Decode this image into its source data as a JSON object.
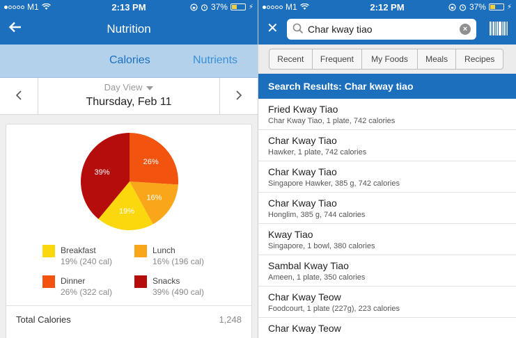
{
  "left_panel": {
    "status": {
      "carrier": "M1",
      "time": "2:13 PM",
      "battery": "37%",
      "battery_fill": 0.37
    },
    "nav": {
      "title": "Nutrition"
    },
    "tabs": [
      {
        "label": "Calories"
      },
      {
        "label": "Nutrients"
      }
    ],
    "day": {
      "view_label": "Day View",
      "date": "Thursday, Feb 11"
    },
    "chart_data": {
      "type": "pie",
      "slices": [
        {
          "name": "Snacks",
          "value": 39,
          "label": "39%",
          "color": "#b50c0c"
        },
        {
          "name": "Dinner",
          "value": 26,
          "label": "26%",
          "color": "#f2530f"
        },
        {
          "name": "Lunch",
          "value": 16,
          "label": "16%",
          "color": "#f9a61b"
        },
        {
          "name": "Breakfast",
          "value": 19,
          "label": "19%",
          "color": "#fbd80e"
        }
      ]
    },
    "legend": [
      {
        "name": "Breakfast",
        "detail": "19% (240 cal)",
        "color": "#fbd80e"
      },
      {
        "name": "Lunch",
        "detail": "16% (196 cal)",
        "color": "#f9a61b"
      },
      {
        "name": "Dinner",
        "detail": "26% (322 cal)",
        "color": "#f2530f"
      },
      {
        "name": "Snacks",
        "detail": "39% (490 cal)",
        "color": "#b50c0c"
      }
    ],
    "total": {
      "label": "Total Calories",
      "value": "1,248"
    }
  },
  "right_panel": {
    "status": {
      "carrier": "M1",
      "time": "2:12 PM",
      "battery": "37%",
      "battery_fill": 0.37
    },
    "search": {
      "value": "Char kway tiao"
    },
    "filters": [
      {
        "label": "Recent"
      },
      {
        "label": "Frequent"
      },
      {
        "label": "My Foods"
      },
      {
        "label": "Meals"
      },
      {
        "label": "Recipes"
      }
    ],
    "results_header": "Search Results: Char kway tiao",
    "results": [
      {
        "title": "Fried Kway Tiao",
        "subtitle": "Char Kway Tiao, 1 plate, 742 calories"
      },
      {
        "title": "Char Kway Tiao",
        "subtitle": "Hawker, 1 plate, 742 calories"
      },
      {
        "title": "Char Kway Tiao",
        "subtitle": "Singapore Hawker, 385 g, 742 calories"
      },
      {
        "title": "Char Kway Tiao",
        "subtitle": "Honglim, 385 g, 744 calories"
      },
      {
        "title": "Kway Tiao",
        "subtitle": "Singapore, 1 bowl, 380 calories"
      },
      {
        "title": "Sambal Kway Tiao",
        "subtitle": "Ameen, 1 plate, 350 calories"
      },
      {
        "title": "Char Kway Teow",
        "subtitle": "Foodcourt, 1 plate (227g), 223 calories"
      },
      {
        "title": "Char Kway Teow",
        "subtitle": ""
      }
    ]
  }
}
